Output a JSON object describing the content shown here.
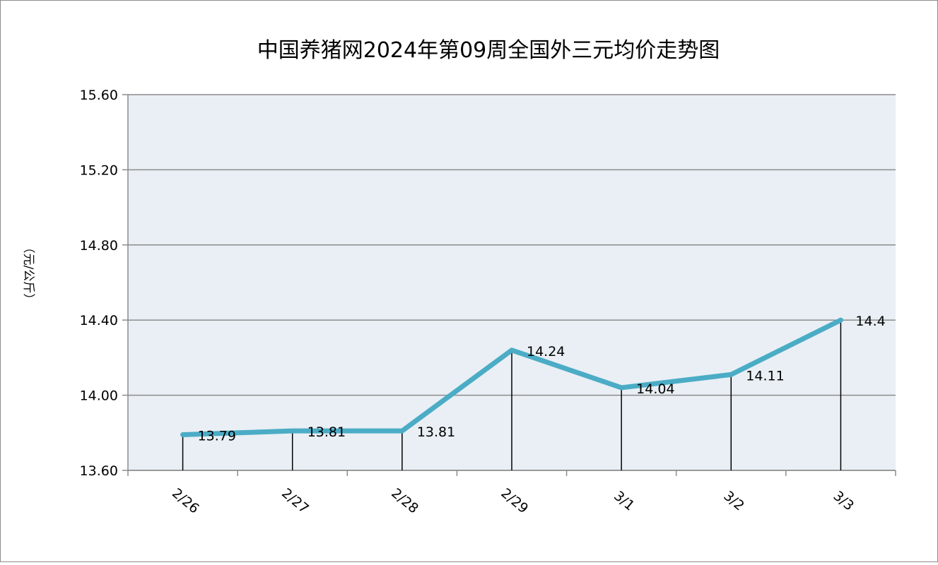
{
  "chart_data": {
    "type": "line",
    "title": "中国养猪网2024年第09周全国外三元均价走势图",
    "ylabel": "（元/公斤）",
    "xlabel": "",
    "categories": [
      "2/26",
      "2/27",
      "2/28",
      "2/29",
      "3/1",
      "3/2",
      "3/3"
    ],
    "series": [
      {
        "values": [
          13.79,
          13.81,
          13.81,
          14.24,
          14.04,
          14.11,
          14.4
        ],
        "labels": [
          "13.79",
          "13.81",
          "13.81",
          "14.24",
          "14.04",
          "14.11",
          "14.4"
        ]
      }
    ],
    "ylim": [
      13.6,
      15.6
    ],
    "yticks": [
      "13.60",
      "14.00",
      "14.40",
      "14.80",
      "15.20",
      "15.60"
    ],
    "grid": true,
    "drop_lines": true,
    "colors": {
      "line": "#4bacc6",
      "plot_background": "#e9eff4",
      "grid": "#8c8c8c"
    }
  }
}
